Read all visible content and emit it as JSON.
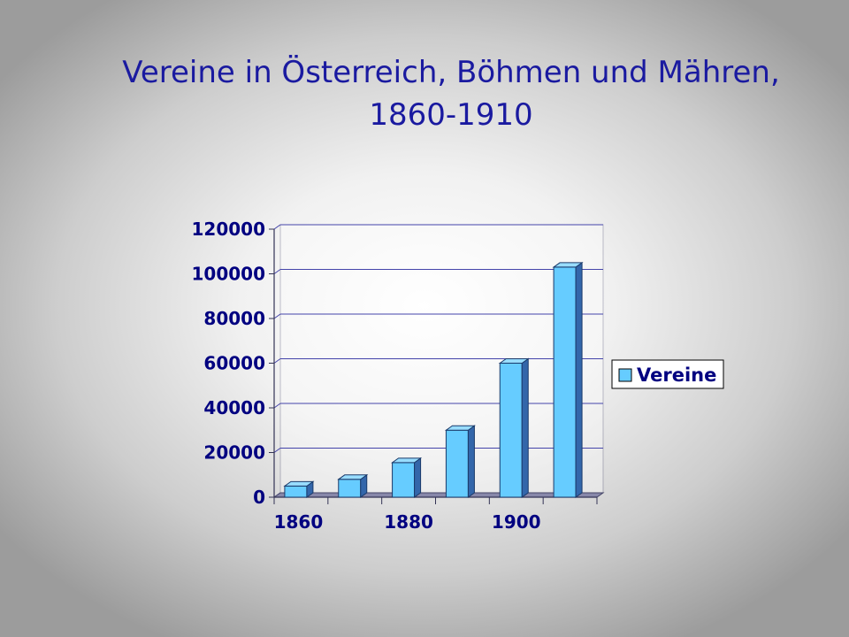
{
  "title": {
    "line1": "Vereine in Österreich, Böhmen und Mähren,",
    "line2": "1860-1910"
  },
  "chart_data": {
    "type": "bar",
    "title": "Vereine in Österreich, Böhmen und Mähren, 1860-1910",
    "categories": [
      "1860",
      "1870",
      "1880",
      "1890",
      "1900",
      "1910"
    ],
    "x_tick_labels": [
      "1860",
      "1880",
      "1900"
    ],
    "series": [
      {
        "name": "Vereine",
        "values": [
          5000,
          8000,
          15500,
          30000,
          60000,
          103000
        ]
      }
    ],
    "ylim": [
      0,
      120000
    ],
    "y_ticks": [
      "0",
      "20000",
      "40000",
      "60000",
      "80000",
      "100000",
      "120000"
    ],
    "grid": true,
    "three_d": true,
    "legend": "right",
    "colors": {
      "bar_front": "#66ccff",
      "bar_side": "#3366aa",
      "bar_top": "#99ddff",
      "floor": "#8888aa",
      "text": "#000080"
    }
  }
}
